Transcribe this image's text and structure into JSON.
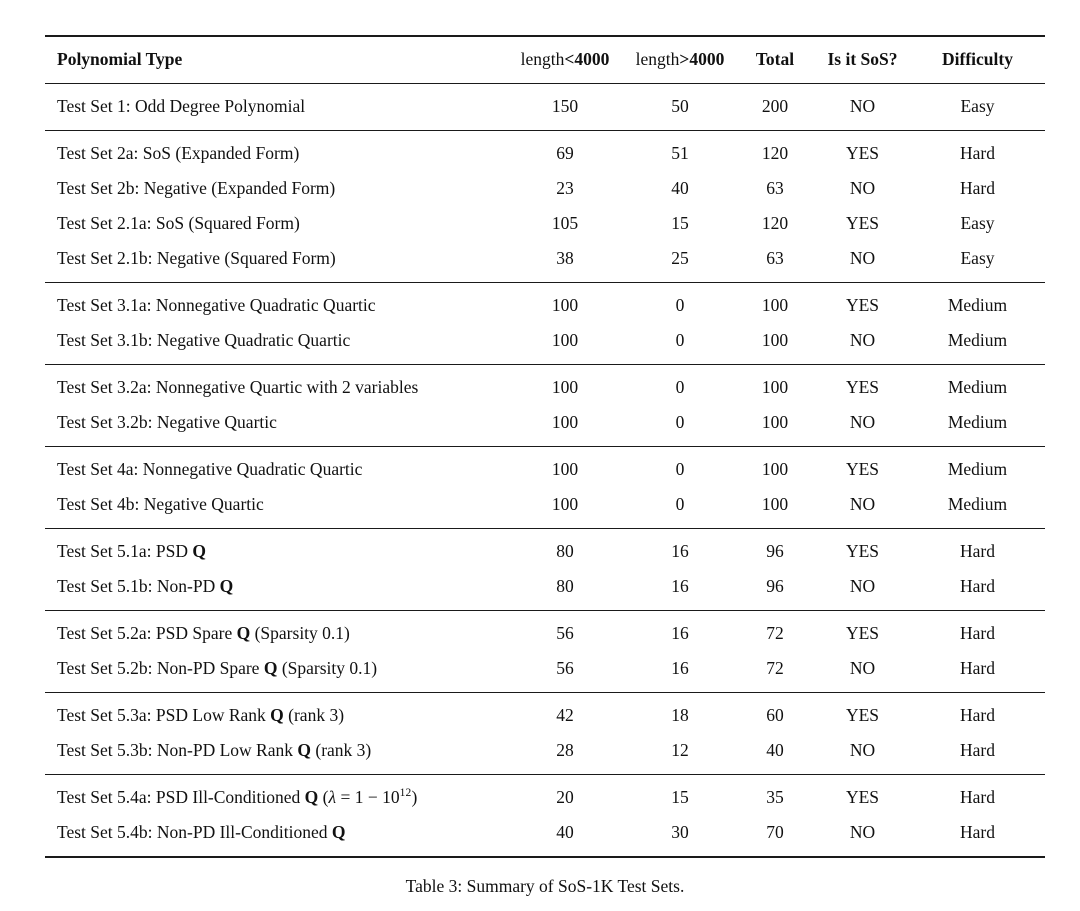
{
  "caption": "Table 3: Summary of SoS-1K Test Sets.",
  "colors": {
    "background": "#ffffff",
    "text": "#111111",
    "rule": "#1a1a1a"
  },
  "table": {
    "columns": [
      {
        "id": "polynomial-type",
        "align": "left",
        "parts": [
          {
            "t": "Polynomial Type",
            "b": true
          }
        ]
      },
      {
        "id": "length-lt-4000",
        "align": "center",
        "parts": [
          {
            "t": "length"
          },
          {
            "t": "<4000",
            "b": true
          }
        ]
      },
      {
        "id": "length-gt-4000",
        "align": "center",
        "parts": [
          {
            "t": "length"
          },
          {
            "t": ">4000",
            "b": true
          }
        ]
      },
      {
        "id": "total",
        "align": "center",
        "parts": [
          {
            "t": "Total",
            "b": true
          }
        ]
      },
      {
        "id": "is-it-sos",
        "align": "center",
        "parts": [
          {
            "t": "Is it SoS?",
            "b": true
          }
        ]
      },
      {
        "id": "difficulty",
        "align": "center",
        "parts": [
          {
            "t": "Difficulty",
            "b": true
          }
        ]
      }
    ],
    "groups": [
      {
        "rows": [
          {
            "label": [
              {
                "t": "Test Set 1: Odd Degree Polynomial"
              }
            ],
            "values": [
              "150",
              "50",
              "200",
              "NO",
              "Easy"
            ]
          }
        ]
      },
      {
        "rows": [
          {
            "label": [
              {
                "t": "Test Set 2a: SoS (Expanded Form)"
              }
            ],
            "values": [
              "69",
              "51",
              "120",
              "YES",
              "Hard"
            ]
          },
          {
            "label": [
              {
                "t": "Test Set 2b: Negative (Expanded Form)"
              }
            ],
            "values": [
              "23",
              "40",
              "63",
              "NO",
              "Hard"
            ]
          },
          {
            "label": [
              {
                "t": "Test Set 2.1a: SoS (Squared Form)"
              }
            ],
            "values": [
              "105",
              "15",
              "120",
              "YES",
              "Easy"
            ]
          },
          {
            "label": [
              {
                "t": "Test Set 2.1b: Negative (Squared Form)"
              }
            ],
            "values": [
              "38",
              "25",
              "63",
              "NO",
              "Easy"
            ]
          }
        ]
      },
      {
        "rows": [
          {
            "label": [
              {
                "t": "Test Set 3.1a: Nonnegative Quadratic Quartic"
              }
            ],
            "values": [
              "100",
              "0",
              "100",
              "YES",
              "Medium"
            ]
          },
          {
            "label": [
              {
                "t": "Test Set 3.1b: Negative Quadratic Quartic"
              }
            ],
            "values": [
              "100",
              "0",
              "100",
              "NO",
              "Medium"
            ]
          }
        ]
      },
      {
        "rows": [
          {
            "label": [
              {
                "t": "Test Set 3.2a: Nonnegative Quartic with 2 variables"
              }
            ],
            "values": [
              "100",
              "0",
              "100",
              "YES",
              "Medium"
            ]
          },
          {
            "label": [
              {
                "t": "Test Set 3.2b: Negative Quartic"
              }
            ],
            "values": [
              "100",
              "0",
              "100",
              "NO",
              "Medium"
            ]
          }
        ]
      },
      {
        "rows": [
          {
            "label": [
              {
                "t": "Test Set 4a: Nonnegative Quadratic Quartic"
              }
            ],
            "values": [
              "100",
              "0",
              "100",
              "YES",
              "Medium"
            ]
          },
          {
            "label": [
              {
                "t": "Test Set 4b: Negative Quartic"
              }
            ],
            "values": [
              "100",
              "0",
              "100",
              "NO",
              "Medium"
            ]
          }
        ]
      },
      {
        "rows": [
          {
            "label": [
              {
                "t": "Test Set 5.1a: PSD "
              },
              {
                "t": "Q",
                "b": true
              }
            ],
            "values": [
              "80",
              "16",
              "96",
              "YES",
              "Hard"
            ]
          },
          {
            "label": [
              {
                "t": "Test Set 5.1b: Non-PD "
              },
              {
                "t": "Q",
                "b": true
              }
            ],
            "values": [
              "80",
              "16",
              "96",
              "NO",
              "Hard"
            ]
          }
        ]
      },
      {
        "rows": [
          {
            "label": [
              {
                "t": "Test Set 5.2a: PSD Spare "
              },
              {
                "t": "Q",
                "b": true
              },
              {
                "t": " (Sparsity 0.1)"
              }
            ],
            "values": [
              "56",
              "16",
              "72",
              "YES",
              "Hard"
            ]
          },
          {
            "label": [
              {
                "t": "Test Set 5.2b: Non-PD Spare "
              },
              {
                "t": "Q",
                "b": true
              },
              {
                "t": " (Sparsity 0.1)"
              }
            ],
            "values": [
              "56",
              "16",
              "72",
              "NO",
              "Hard"
            ]
          }
        ]
      },
      {
        "rows": [
          {
            "label": [
              {
                "t": "Test Set 5.3a: PSD Low Rank "
              },
              {
                "t": "Q",
                "b": true
              },
              {
                "t": " (rank 3)"
              }
            ],
            "values": [
              "42",
              "18",
              "60",
              "YES",
              "Hard"
            ]
          },
          {
            "label": [
              {
                "t": "Test Set 5.3b: Non-PD Low Rank "
              },
              {
                "t": "Q",
                "b": true
              },
              {
                "t": " (rank 3)"
              }
            ],
            "values": [
              "28",
              "12",
              "40",
              "NO",
              "Hard"
            ]
          }
        ]
      },
      {
        "rows": [
          {
            "label": [
              {
                "t": "Test Set 5.4a: PSD Ill-Conditioned "
              },
              {
                "t": "Q",
                "b": true
              },
              {
                "t": " ("
              },
              {
                "t": "λ",
                "i": true
              },
              {
                "t": " = 1 − 10"
              },
              {
                "t": "12",
                "sup": true
              },
              {
                "t": ")"
              }
            ],
            "values": [
              "20",
              "15",
              "35",
              "YES",
              "Hard"
            ]
          },
          {
            "label": [
              {
                "t": "Test Set 5.4b: Non-PD Ill-Conditioned "
              },
              {
                "t": "Q",
                "b": true
              }
            ],
            "values": [
              "40",
              "30",
              "70",
              "NO",
              "Hard"
            ]
          }
        ]
      }
    ]
  }
}
